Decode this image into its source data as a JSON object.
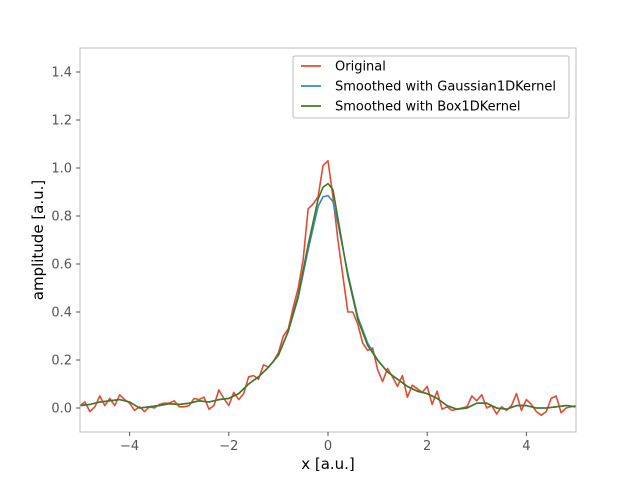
{
  "chart_data": {
    "type": "line",
    "xlabel": "x [a.u.]",
    "ylabel": "amplitude [a.u.]",
    "xlim": [
      -5,
      5
    ],
    "ylim": [
      -0.1,
      1.5
    ],
    "xticks": [
      -4,
      -2,
      0,
      2,
      4
    ],
    "xtick_labels": [
      "−4",
      "−2",
      "0",
      "2",
      "4"
    ],
    "yticks": [
      0.0,
      0.2,
      0.4,
      0.6,
      0.8,
      1.0,
      1.2,
      1.4
    ],
    "ytick_labels": [
      "0.0",
      "0.2",
      "0.4",
      "0.6",
      "0.8",
      "1.0",
      "1.2",
      "1.4"
    ],
    "grid": false,
    "legend_position": "top-right",
    "series": [
      {
        "name": "Original",
        "color": "#e24a33",
        "points": [
          [
            -5.0,
            0.01
          ],
          [
            -4.9,
            0.025
          ],
          [
            -4.8,
            -0.015
          ],
          [
            -4.7,
            0.005
          ],
          [
            -4.6,
            0.05
          ],
          [
            -4.5,
            0.01
          ],
          [
            -4.4,
            0.04
          ],
          [
            -4.3,
            0.01
          ],
          [
            -4.2,
            0.055
          ],
          [
            -4.1,
            0.035
          ],
          [
            -4.0,
            0.02
          ],
          [
            -3.9,
            -0.01
          ],
          [
            -3.8,
            0.005
          ],
          [
            -3.7,
            -0.015
          ],
          [
            -3.6,
            0.005
          ],
          [
            -3.5,
            0.0
          ],
          [
            -3.4,
            0.015
          ],
          [
            -3.3,
            0.02
          ],
          [
            -3.2,
            0.02
          ],
          [
            -3.1,
            0.03
          ],
          [
            -3.0,
            0.005
          ],
          [
            -2.9,
            0.005
          ],
          [
            -2.8,
            0.01
          ],
          [
            -2.7,
            0.04
          ],
          [
            -2.6,
            0.035
          ],
          [
            -2.5,
            0.045
          ],
          [
            -2.4,
            -0.005
          ],
          [
            -2.3,
            0.01
          ],
          [
            -2.2,
            0.075
          ],
          [
            -2.1,
            0.04
          ],
          [
            -2.0,
            0.01
          ],
          [
            -1.9,
            0.065
          ],
          [
            -1.8,
            0.035
          ],
          [
            -1.7,
            0.06
          ],
          [
            -1.6,
            0.13
          ],
          [
            -1.5,
            0.135
          ],
          [
            -1.4,
            0.12
          ],
          [
            -1.3,
            0.18
          ],
          [
            -1.2,
            0.17
          ],
          [
            -1.1,
            0.195
          ],
          [
            -1.0,
            0.23
          ],
          [
            -0.9,
            0.3
          ],
          [
            -0.8,
            0.33
          ],
          [
            -0.7,
            0.42
          ],
          [
            -0.6,
            0.5
          ],
          [
            -0.5,
            0.62
          ],
          [
            -0.4,
            0.83
          ],
          [
            -0.3,
            0.85
          ],
          [
            -0.2,
            0.88
          ],
          [
            -0.1,
            1.01
          ],
          [
            -0.05,
            1.02
          ],
          [
            0.0,
            1.03
          ],
          [
            0.1,
            0.88
          ],
          [
            0.2,
            0.7
          ],
          [
            0.3,
            0.55
          ],
          [
            0.4,
            0.4
          ],
          [
            0.5,
            0.4
          ],
          [
            0.6,
            0.35
          ],
          [
            0.7,
            0.27
          ],
          [
            0.8,
            0.24
          ],
          [
            0.9,
            0.25
          ],
          [
            1.0,
            0.16
          ],
          [
            1.1,
            0.11
          ],
          [
            1.2,
            0.165
          ],
          [
            1.3,
            0.13
          ],
          [
            1.4,
            0.09
          ],
          [
            1.5,
            0.135
          ],
          [
            1.6,
            0.045
          ],
          [
            1.7,
            0.095
          ],
          [
            1.8,
            0.08
          ],
          [
            1.9,
            0.065
          ],
          [
            2.0,
            0.09
          ],
          [
            2.1,
            0.015
          ],
          [
            2.2,
            0.07
          ],
          [
            2.3,
            -0.005
          ],
          [
            2.4,
            0.005
          ],
          [
            2.5,
            -0.01
          ],
          [
            2.6,
            -0.005
          ],
          [
            2.7,
            0.0
          ],
          [
            2.8,
            0.005
          ],
          [
            2.9,
            0.05
          ],
          [
            3.0,
            0.03
          ],
          [
            3.1,
            0.055
          ],
          [
            3.2,
            0.0
          ],
          [
            3.3,
            0.01
          ],
          [
            3.4,
            -0.025
          ],
          [
            3.5,
            0.005
          ],
          [
            3.6,
            -0.01
          ],
          [
            3.7,
            0.01
          ],
          [
            3.8,
            0.06
          ],
          [
            3.9,
            -0.01
          ],
          [
            4.0,
            0.035
          ],
          [
            4.1,
            0.015
          ],
          [
            4.2,
            -0.015
          ],
          [
            4.3,
            -0.03
          ],
          [
            4.4,
            -0.015
          ],
          [
            4.5,
            0.04
          ],
          [
            4.6,
            0.05
          ],
          [
            4.7,
            -0.02
          ],
          [
            4.8,
            0.0
          ],
          [
            5.0,
            0.01
          ]
        ]
      },
      {
        "name": "Smoothed with Gaussian1DKernel",
        "color": "#348abd",
        "points": [
          [
            -5.0,
            0.01
          ],
          [
            -4.8,
            0.015
          ],
          [
            -4.6,
            0.025
          ],
          [
            -4.4,
            0.03
          ],
          [
            -4.2,
            0.035
          ],
          [
            -4.0,
            0.025
          ],
          [
            -3.8,
            0.0
          ],
          [
            -3.6,
            0.005
          ],
          [
            -3.4,
            0.01
          ],
          [
            -3.2,
            0.018
          ],
          [
            -3.0,
            0.015
          ],
          [
            -2.8,
            0.02
          ],
          [
            -2.6,
            0.03
          ],
          [
            -2.4,
            0.025
          ],
          [
            -2.2,
            0.035
          ],
          [
            -2.0,
            0.04
          ],
          [
            -1.8,
            0.06
          ],
          [
            -1.6,
            0.1
          ],
          [
            -1.4,
            0.13
          ],
          [
            -1.2,
            0.17
          ],
          [
            -1.0,
            0.22
          ],
          [
            -0.8,
            0.32
          ],
          [
            -0.6,
            0.46
          ],
          [
            -0.4,
            0.66
          ],
          [
            -0.2,
            0.84
          ],
          [
            -0.1,
            0.88
          ],
          [
            0.0,
            0.885
          ],
          [
            0.1,
            0.86
          ],
          [
            0.2,
            0.77
          ],
          [
            0.4,
            0.56
          ],
          [
            0.6,
            0.38
          ],
          [
            0.8,
            0.27
          ],
          [
            1.0,
            0.2
          ],
          [
            1.2,
            0.15
          ],
          [
            1.4,
            0.12
          ],
          [
            1.6,
            0.09
          ],
          [
            1.8,
            0.07
          ],
          [
            2.0,
            0.06
          ],
          [
            2.2,
            0.04
          ],
          [
            2.4,
            0.01
          ],
          [
            2.6,
            -0.005
          ],
          [
            2.8,
            0.0
          ],
          [
            3.0,
            0.02
          ],
          [
            3.2,
            0.02
          ],
          [
            3.4,
            0.0
          ],
          [
            3.6,
            -0.005
          ],
          [
            3.8,
            0.01
          ],
          [
            4.0,
            0.01
          ],
          [
            4.2,
            0.0
          ],
          [
            4.4,
            0.0
          ],
          [
            4.6,
            0.005
          ],
          [
            4.8,
            0.01
          ],
          [
            5.0,
            0.005
          ]
        ]
      },
      {
        "name": "Smoothed with Box1DKernel",
        "color": "#467821",
        "points": [
          [
            -5.0,
            0.01
          ],
          [
            -4.8,
            0.015
          ],
          [
            -4.6,
            0.025
          ],
          [
            -4.4,
            0.03
          ],
          [
            -4.2,
            0.035
          ],
          [
            -4.0,
            0.025
          ],
          [
            -3.8,
            0.0
          ],
          [
            -3.6,
            0.005
          ],
          [
            -3.4,
            0.01
          ],
          [
            -3.2,
            0.018
          ],
          [
            -3.0,
            0.015
          ],
          [
            -2.8,
            0.02
          ],
          [
            -2.6,
            0.03
          ],
          [
            -2.4,
            0.025
          ],
          [
            -2.2,
            0.035
          ],
          [
            -2.0,
            0.04
          ],
          [
            -1.8,
            0.06
          ],
          [
            -1.6,
            0.1
          ],
          [
            -1.4,
            0.13
          ],
          [
            -1.2,
            0.17
          ],
          [
            -1.0,
            0.22
          ],
          [
            -0.8,
            0.32
          ],
          [
            -0.6,
            0.47
          ],
          [
            -0.4,
            0.68
          ],
          [
            -0.2,
            0.87
          ],
          [
            -0.1,
            0.92
          ],
          [
            0.0,
            0.935
          ],
          [
            0.1,
            0.91
          ],
          [
            0.2,
            0.79
          ],
          [
            0.4,
            0.55
          ],
          [
            0.6,
            0.37
          ],
          [
            0.8,
            0.26
          ],
          [
            1.0,
            0.2
          ],
          [
            1.2,
            0.15
          ],
          [
            1.4,
            0.12
          ],
          [
            1.6,
            0.09
          ],
          [
            1.8,
            0.07
          ],
          [
            2.0,
            0.06
          ],
          [
            2.2,
            0.04
          ],
          [
            2.4,
            0.01
          ],
          [
            2.6,
            -0.005
          ],
          [
            2.8,
            0.0
          ],
          [
            3.0,
            0.02
          ],
          [
            3.2,
            0.02
          ],
          [
            3.4,
            0.0
          ],
          [
            3.6,
            -0.005
          ],
          [
            3.8,
            0.01
          ],
          [
            4.0,
            0.01
          ],
          [
            4.2,
            0.0
          ],
          [
            4.4,
            0.0
          ],
          [
            4.6,
            0.005
          ],
          [
            4.8,
            0.01
          ],
          [
            5.0,
            0.005
          ]
        ]
      }
    ]
  }
}
